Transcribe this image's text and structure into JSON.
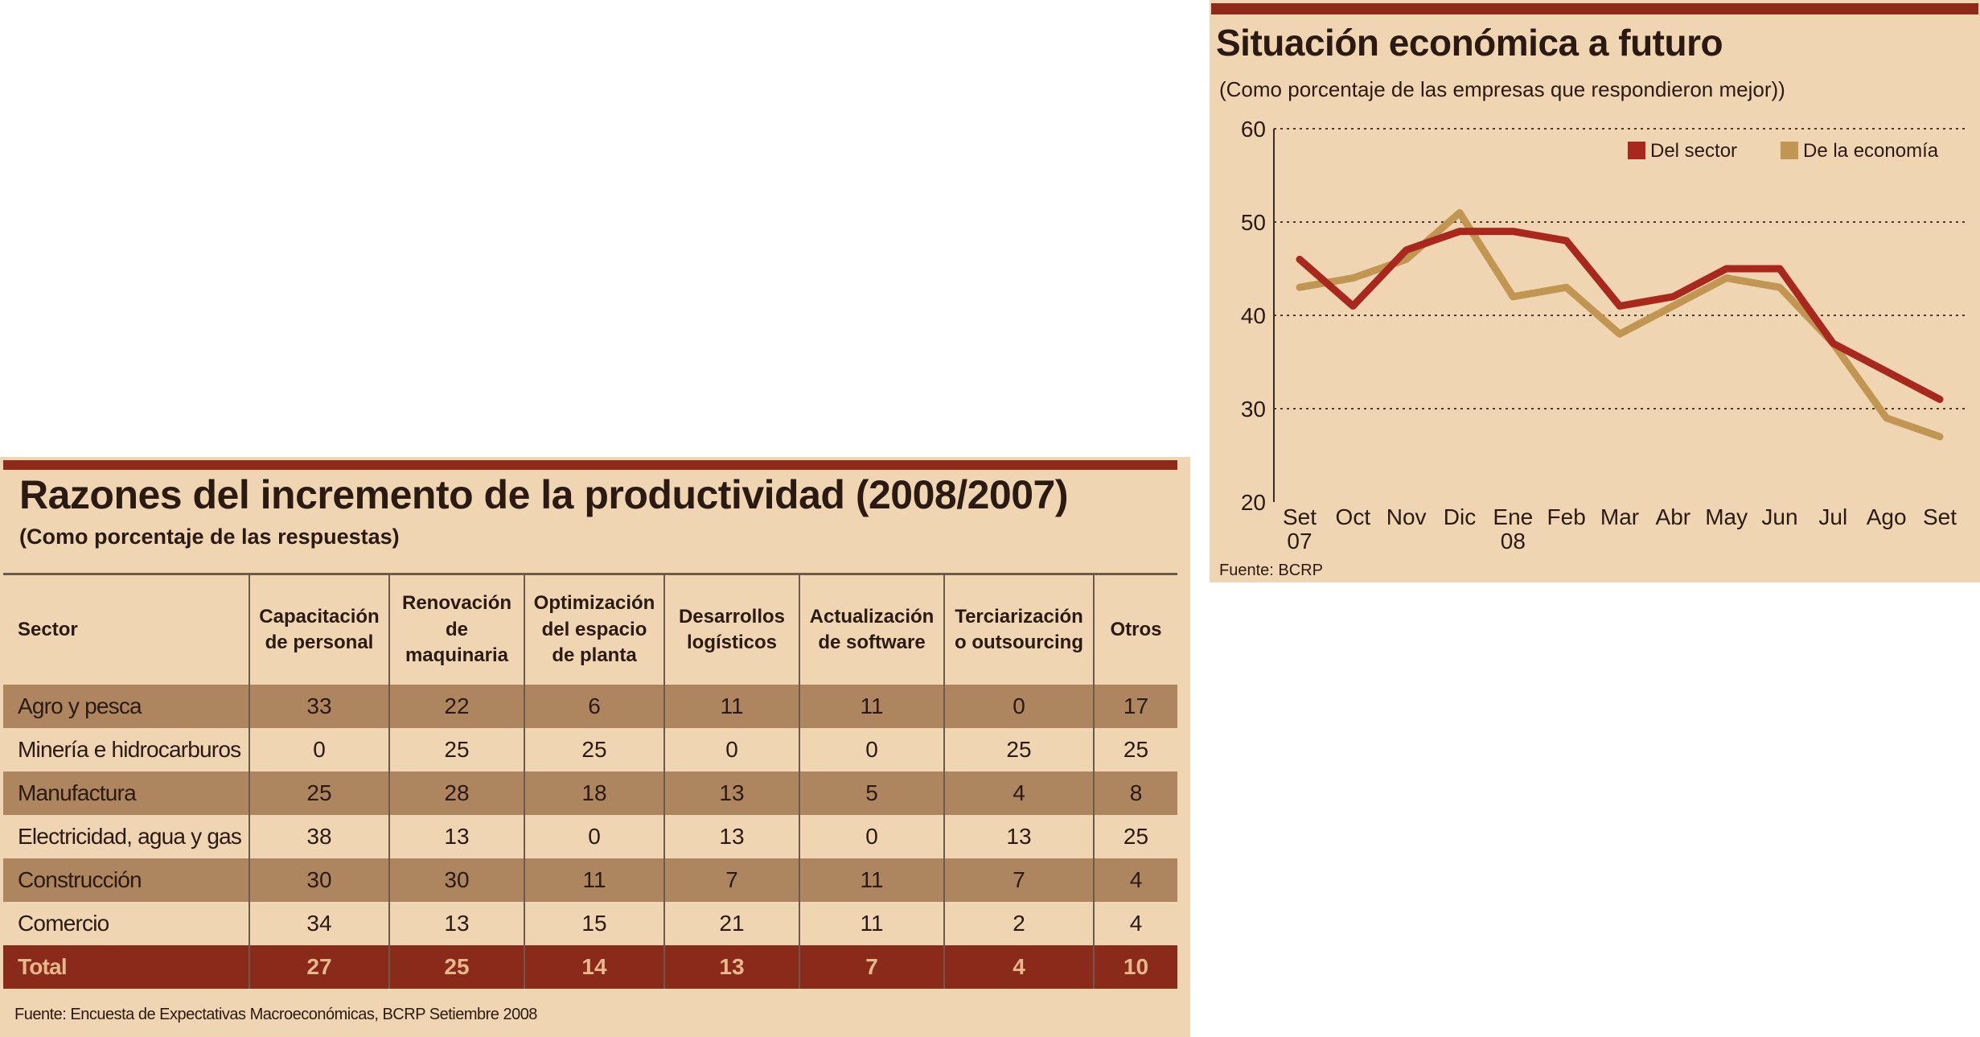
{
  "table": {
    "title": "Razones del incremento de la productividad (2008/2007)",
    "subtitle": "(Como porcentaje de las respuestas)",
    "source": "Fuente: Encuesta de Expectativas Macroeconómicas, BCRP Setiembre 2008",
    "headers": {
      "sector": "Sector",
      "c1a": "Capacitación",
      "c1b": "de personal",
      "c2a": "Renovación",
      "c2b": "de",
      "c2c": "maquinaria",
      "c3a": "Optimización",
      "c3b": "del espacio",
      "c3c": "de planta",
      "c4a": "Desarrollos",
      "c4b": "logísticos",
      "c5a": "Actualización",
      "c5b": "de software",
      "c6a": "Terciarización",
      "c6b": "o outsourcing",
      "c7": "Otros"
    },
    "rows": [
      {
        "sector": "Agro y pesca",
        "v": [
          "33",
          "22",
          "6",
          "11",
          "11",
          "0",
          "17"
        ]
      },
      {
        "sector": "Minería e hidrocarburos",
        "v": [
          "0",
          "25",
          "25",
          "0",
          "0",
          "25",
          "25"
        ]
      },
      {
        "sector": "Manufactura",
        "v": [
          "25",
          "28",
          "18",
          "13",
          "5",
          "4",
          "8"
        ]
      },
      {
        "sector": "Electricidad, agua y gas",
        "v": [
          "38",
          "13",
          "0",
          "13",
          "0",
          "13",
          "25"
        ]
      },
      {
        "sector": "Construcción",
        "v": [
          "30",
          "30",
          "11",
          "7",
          "11",
          "7",
          "4"
        ]
      },
      {
        "sector": "Comercio",
        "v": [
          "34",
          "13",
          "15",
          "21",
          "11",
          "2",
          "4"
        ]
      },
      {
        "sector": "Total",
        "v": [
          "27",
          "25",
          "14",
          "13",
          "7",
          "4",
          "10"
        ]
      }
    ]
  },
  "chart_data": {
    "type": "line",
    "title": "Situación económica a futuro",
    "subtitle": "(Como porcentaje de las empresas que respondieron mejor))",
    "source": "Fuente: BCRP",
    "categories": [
      "Set 07",
      "Oct",
      "Nov",
      "Dic",
      "Ene 08",
      "Feb",
      "Mar",
      "Abr",
      "May",
      "Jun",
      "Jul",
      "Ago",
      "Set"
    ],
    "xlabels": [
      {
        "l1": "Set",
        "l2": "07"
      },
      {
        "l1": "Oct",
        "l2": ""
      },
      {
        "l1": "Nov",
        "l2": ""
      },
      {
        "l1": "Dic",
        "l2": ""
      },
      {
        "l1": "Ene",
        "l2": "08"
      },
      {
        "l1": "Feb",
        "l2": ""
      },
      {
        "l1": "Mar",
        "l2": ""
      },
      {
        "l1": "Abr",
        "l2": ""
      },
      {
        "l1": "May",
        "l2": ""
      },
      {
        "l1": "Jun",
        "l2": ""
      },
      {
        "l1": "Jul",
        "l2": ""
      },
      {
        "l1": "Ago",
        "l2": ""
      },
      {
        "l1": "Set",
        "l2": ""
      }
    ],
    "ylim": [
      20,
      60
    ],
    "yticks": [
      20,
      30,
      40,
      50,
      60
    ],
    "ytick_labels": [
      "20",
      "30",
      "40",
      "50",
      "60"
    ],
    "grid": true,
    "legend_position": "top-right",
    "series": [
      {
        "name": "Del sector",
        "color": "#a8281e",
        "values": [
          46,
          41,
          47,
          49,
          49,
          48,
          41,
          42,
          45,
          45,
          37,
          34,
          31
        ]
      },
      {
        "name": "De la economía",
        "color": "#c19552",
        "values": [
          43,
          44,
          46,
          51,
          42,
          43,
          38,
          41,
          44,
          43,
          37,
          29,
          27
        ]
      }
    ]
  }
}
